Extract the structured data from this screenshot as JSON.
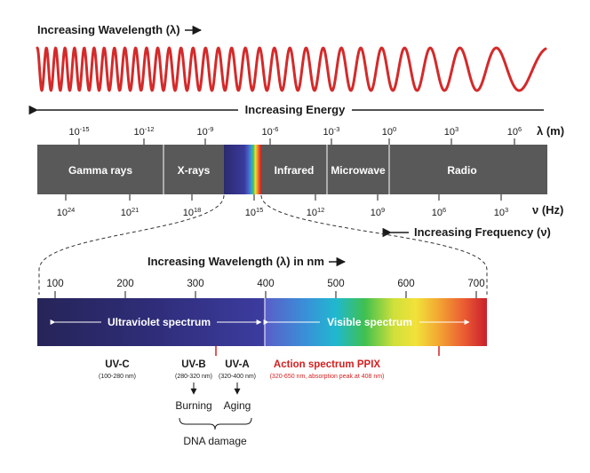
{
  "colors": {
    "wave": "#d42a2a",
    "bar": "#595959",
    "text": "#1a1a1a",
    "accent_red": "#d42020",
    "uv_dark": "#2a2468",
    "white": "#ffffff"
  },
  "top": {
    "wavelength_label": "Increasing Wavelength (λ)",
    "energy_label": "Increasing Energy",
    "wavelength_scale": {
      "unit_label": "λ (m)",
      "ticks": [
        {
          "base": "10",
          "exp": "-15"
        },
        {
          "base": "10",
          "exp": "-12"
        },
        {
          "base": "10",
          "exp": "-9"
        },
        {
          "base": "10",
          "exp": "-6"
        },
        {
          "base": "10",
          "exp": "-3"
        },
        {
          "base": "10",
          "exp": "0"
        },
        {
          "base": "10",
          "exp": "3"
        },
        {
          "base": "10",
          "exp": "6"
        }
      ]
    },
    "bands": [
      "Gamma rays",
      "X-rays",
      "Infrared",
      "Microwave",
      "Radio"
    ],
    "frequency_scale": {
      "unit_label": "ν (Hz)",
      "ticks": [
        {
          "base": "10",
          "exp": "24"
        },
        {
          "base": "10",
          "exp": "21"
        },
        {
          "base": "10",
          "exp": "18"
        },
        {
          "base": "10",
          "exp": "15"
        },
        {
          "base": "10",
          "exp": "12"
        },
        {
          "base": "10",
          "exp": "9"
        },
        {
          "base": "10",
          "exp": "6"
        },
        {
          "base": "10",
          "exp": "3"
        }
      ]
    },
    "frequency_label": "Increasing Frequency (ν)"
  },
  "detail": {
    "wavelength_nm_label": "Increasing Wavelength (λ) in nm",
    "nm_ticks": [
      "100",
      "200",
      "300",
      "400",
      "500",
      "600",
      "700"
    ],
    "uv_label": "Ultraviolet spectrum",
    "visible_label": "Visible spectrum"
  },
  "annotations": {
    "uvc": {
      "title": "UV-C",
      "range": "(100-280 nm)"
    },
    "uvb": {
      "title": "UV-B",
      "range": "(280-320 nm)",
      "effect": "Burning"
    },
    "uva": {
      "title": "UV-A",
      "range": "(320-400 nm)",
      "effect": "Aging"
    },
    "action": {
      "title": "Action spectrum PPIX",
      "range": "(320-650 nm, absorption peak at 408 nm)"
    },
    "dna_damage": "DNA damage"
  }
}
